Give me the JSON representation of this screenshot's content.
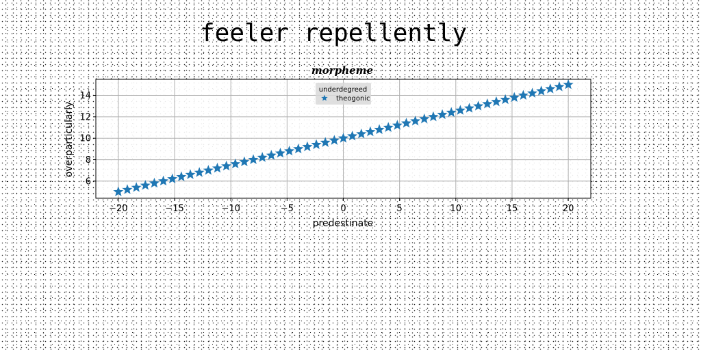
{
  "figure": {
    "title": "feeler repellently"
  },
  "chart_data": {
    "type": "scatter",
    "title": "morpheme",
    "xlabel": "predestinate",
    "ylabel": "overparticularly",
    "xlim": [
      -22,
      22
    ],
    "ylim": [
      4.4,
      15.5
    ],
    "xticks": [
      -20,
      -15,
      -10,
      -5,
      0,
      5,
      10,
      15,
      20
    ],
    "yticks": [
      6,
      8,
      10,
      12,
      14
    ],
    "xtick_labels": [
      "−20",
      "−15",
      "−10",
      "−5",
      "0",
      "5",
      "10",
      "15",
      "20"
    ],
    "ytick_labels": [
      "6",
      "8",
      "10",
      "12",
      "14"
    ],
    "grid": true,
    "legend": {
      "title": "underdegreed",
      "placement": "upper-center",
      "entries": [
        "theogonic"
      ]
    },
    "series": [
      {
        "name": "theogonic",
        "marker": "star",
        "color": "#1f77b4",
        "x": [
          -20,
          -19.2,
          -18.4,
          -17.6,
          -16.8,
          -16,
          -15.2,
          -14.4,
          -13.6,
          -12.8,
          -12,
          -11.2,
          -10.4,
          -9.6,
          -8.8,
          -8,
          -7.2,
          -6.4,
          -5.6,
          -4.8,
          -4,
          -3.2,
          -2.4,
          -1.6,
          -0.8,
          0,
          0.8,
          1.6,
          2.4,
          3.2,
          4,
          4.8,
          5.6,
          6.4,
          7.2,
          8,
          8.8,
          9.6,
          10.4,
          11.2,
          12,
          12.8,
          13.6,
          14.4,
          15.2,
          16,
          16.8,
          17.6,
          18.4,
          19.2,
          20
        ],
        "y": [
          5,
          5.2,
          5.4,
          5.6,
          5.8,
          6,
          6.2,
          6.4,
          6.6,
          6.8,
          7,
          7.2,
          7.4,
          7.6,
          7.8,
          8,
          8.2,
          8.4,
          8.6,
          8.8,
          9,
          9.2,
          9.4,
          9.6,
          9.8,
          10,
          10.2,
          10.4,
          10.6,
          10.8,
          11,
          11.2,
          11.4,
          11.6,
          11.8,
          12,
          12.2,
          12.4,
          12.6,
          12.8,
          13,
          13.2,
          13.4,
          13.6,
          13.8,
          14,
          14.2,
          14.4,
          14.6,
          14.8,
          15
        ]
      }
    ]
  }
}
